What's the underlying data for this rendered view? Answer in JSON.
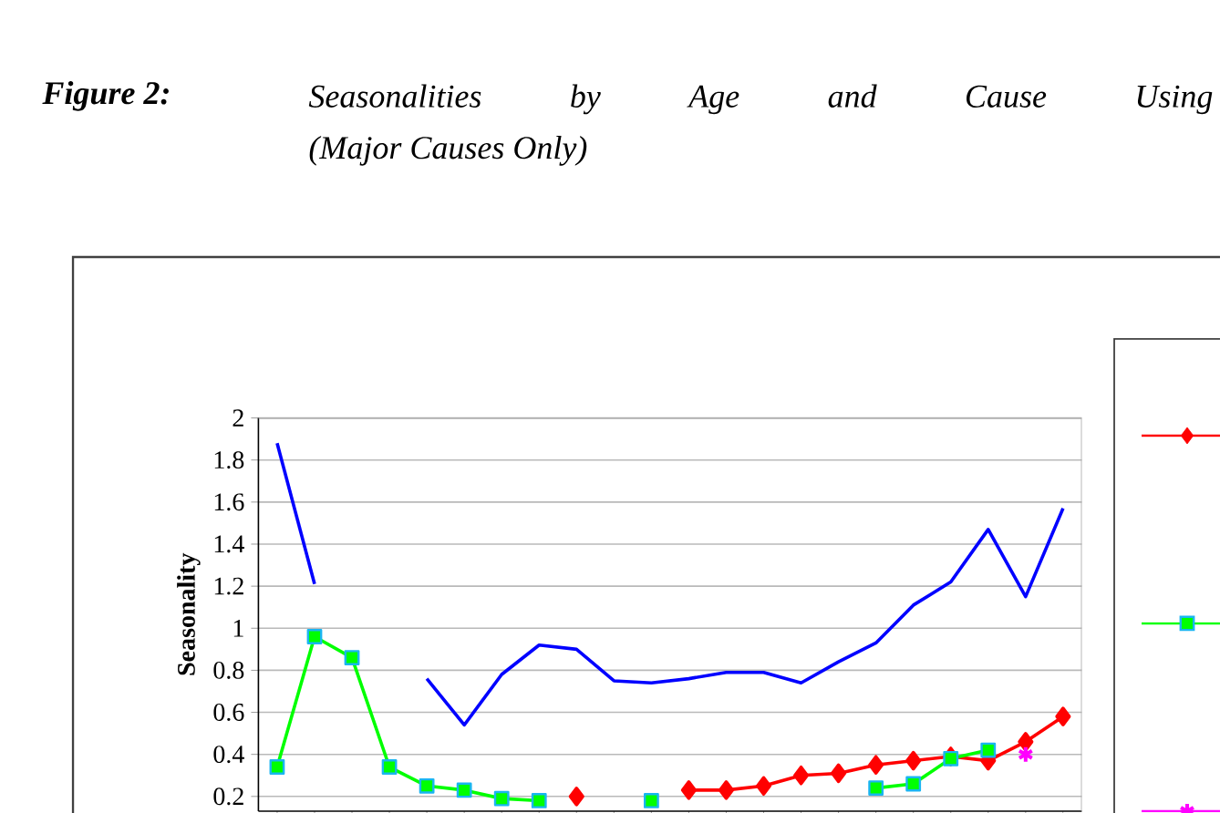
{
  "chart_data": {
    "type": "line",
    "title": "Seasonalities by Age and Cause Using",
    "subtitle": "(Major Causes Only)",
    "annotations": [
      "Figure 2:"
    ],
    "ylabel": "Seasonality",
    "categories": [
      null,
      null,
      null,
      null,
      null,
      null,
      null,
      null,
      null,
      null,
      null,
      null,
      null,
      null,
      null,
      null,
      null,
      null,
      null,
      null,
      null,
      null
    ],
    "series": [
      {
        "color": "#ff0000",
        "marker": "diamond",
        "values": [
          null,
          null,
          null,
          null,
          null,
          null,
          null,
          null,
          null,
          null,
          null,
          0.23,
          0.23,
          0.25,
          0.3,
          0.31,
          0.35,
          0.37,
          0.39,
          0.37,
          0.46,
          0.58
        ]
      },
      {
        "color": "#00ff00",
        "marker": "square",
        "values": [
          0.34,
          0.96,
          0.86,
          0.34,
          0.25,
          0.23,
          0.19,
          0.18,
          null,
          null,
          null,
          null,
          null,
          null,
          null,
          null,
          null,
          null,
          null,
          null,
          null,
          null
        ]
      },
      {
        "color": "#ff00ff",
        "marker": "cross",
        "values": [
          null,
          null,
          null,
          null,
          null,
          null,
          null,
          null,
          null,
          null,
          null,
          null,
          null,
          null,
          null,
          null,
          null,
          null,
          null,
          null,
          0.4,
          null
        ]
      },
      {
        "color": "#0000ff",
        "marker": "none",
        "values": [
          null,
          null,
          null,
          null,
          0.76,
          0.54,
          0.78,
          0.92,
          0.9,
          0.75,
          0.74,
          0.76,
          0.79,
          0.79,
          0.74,
          0.84,
          0.93,
          1.11,
          1.22,
          1.47,
          1.15,
          1.57
        ]
      },
      {
        "color": "#0000ff",
        "marker": "none",
        "values": [
          1.88,
          1.21,
          null,
          null,
          null,
          null,
          null,
          null,
          null,
          null,
          null,
          null,
          null,
          null,
          null,
          null,
          null,
          null,
          null,
          null,
          null,
          null
        ]
      },
      {
        "color": "#00ff00",
        "marker": "square",
        "values": [
          null,
          null,
          null,
          null,
          null,
          null,
          null,
          null,
          null,
          null,
          null,
          null,
          null,
          null,
          null,
          null,
          0.24,
          0.26,
          0.38,
          0.42,
          null,
          null
        ]
      },
      {
        "color": "#00ff00",
        "marker": "square",
        "values": [
          null,
          null,
          null,
          null,
          null,
          null,
          null,
          null,
          null,
          null,
          0.18,
          null,
          null,
          null,
          null,
          null,
          null,
          null,
          null,
          null,
          null,
          null
        ]
      },
      {
        "color": "#ff0000",
        "marker": "diamond",
        "values": [
          null,
          null,
          null,
          null,
          null,
          null,
          null,
          null,
          0.2,
          null,
          null,
          null,
          null,
          null,
          null,
          null,
          null,
          null,
          null,
          null,
          null,
          null
        ]
      }
    ],
    "ylim": [
      0.13,
      2
    ],
    "yticks": [
      0.2,
      0.4,
      0.6,
      0.8,
      1,
      1.2,
      1.4,
      1.6,
      1.8,
      2
    ],
    "grid": "y",
    "tick_labels": "y"
  }
}
